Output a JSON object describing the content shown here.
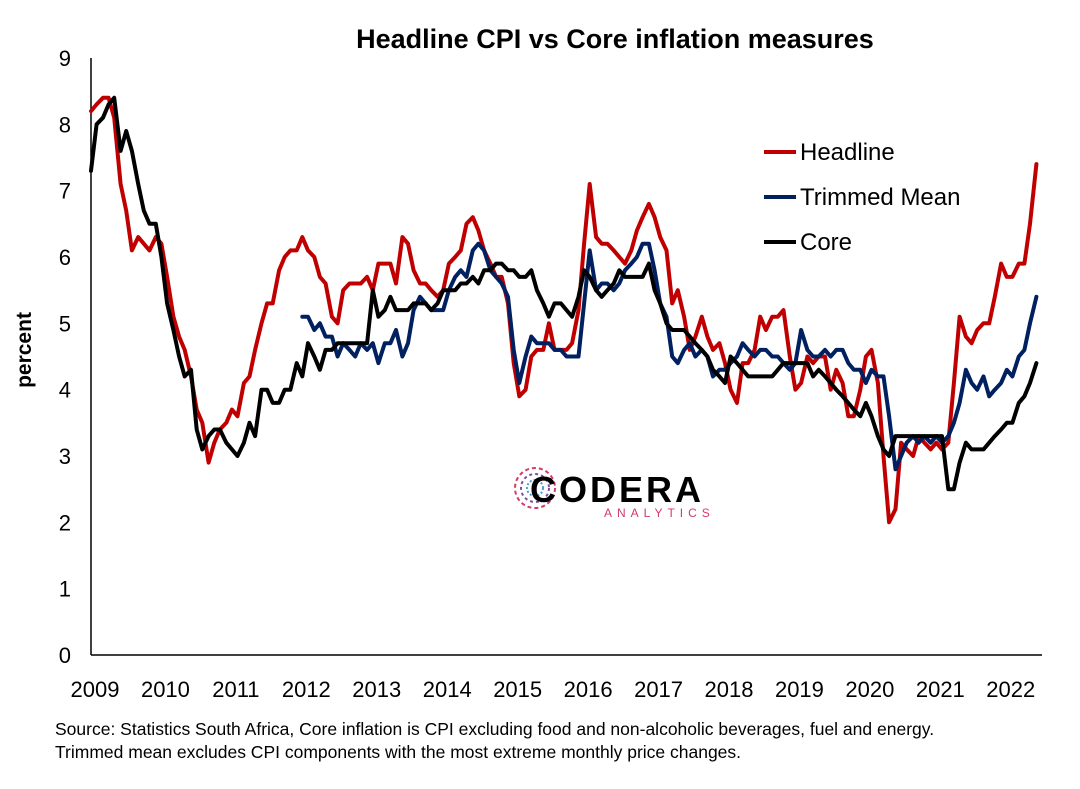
{
  "chart_data": {
    "type": "line",
    "title": "Headline CPI vs Core inflation measures",
    "ylabel": "percent",
    "xlabel": "",
    "ylim": [
      0,
      9
    ],
    "yticks": [
      "0",
      "1",
      "2",
      "3",
      "4",
      "5",
      "6",
      "7",
      "8",
      "9"
    ],
    "xlim": [
      2009,
      2022.5
    ],
    "xticks": [
      "2009",
      "2010",
      "2011",
      "2012",
      "2013",
      "2014",
      "2015",
      "2016",
      "2017",
      "2018",
      "2019",
      "2020",
      "2021",
      "2022"
    ],
    "legend_position": "top-right",
    "series": [
      {
        "name": "Headline",
        "color": "#c00000",
        "x": [
          2009.0,
          2009.08,
          2009.17,
          2009.25,
          2009.33,
          2009.42,
          2009.5,
          2009.58,
          2009.67,
          2009.75,
          2009.83,
          2009.92,
          2010.0,
          2010.08,
          2010.17,
          2010.25,
          2010.33,
          2010.42,
          2010.5,
          2010.58,
          2010.67,
          2010.75,
          2010.83,
          2010.92,
          2011.0,
          2011.08,
          2011.17,
          2011.25,
          2011.33,
          2011.42,
          2011.5,
          2011.58,
          2011.67,
          2011.75,
          2011.83,
          2011.92,
          2012.0,
          2012.08,
          2012.17,
          2012.25,
          2012.33,
          2012.42,
          2012.5,
          2012.58,
          2012.67,
          2012.75,
          2012.83,
          2012.92,
          2013.0,
          2013.08,
          2013.17,
          2013.25,
          2013.33,
          2013.42,
          2013.5,
          2013.58,
          2013.67,
          2013.75,
          2013.83,
          2013.92,
          2014.0,
          2014.08,
          2014.17,
          2014.25,
          2014.33,
          2014.42,
          2014.5,
          2014.58,
          2014.67,
          2014.75,
          2014.83,
          2014.92,
          2015.0,
          2015.08,
          2015.17,
          2015.25,
          2015.33,
          2015.42,
          2015.5,
          2015.58,
          2015.67,
          2015.75,
          2015.83,
          2015.92,
          2016.0,
          2016.08,
          2016.17,
          2016.25,
          2016.33,
          2016.42,
          2016.5,
          2016.58,
          2016.67,
          2016.75,
          2016.83,
          2016.92,
          2017.0,
          2017.08,
          2017.17,
          2017.25,
          2017.33,
          2017.42,
          2017.5,
          2017.58,
          2017.67,
          2017.75,
          2017.83,
          2017.92,
          2018.0,
          2018.08,
          2018.17,
          2018.25,
          2018.33,
          2018.42,
          2018.5,
          2018.58,
          2018.67,
          2018.75,
          2018.83,
          2018.92,
          2019.0,
          2019.08,
          2019.17,
          2019.25,
          2019.33,
          2019.42,
          2019.5,
          2019.58,
          2019.67,
          2019.75,
          2019.83,
          2019.92,
          2020.0,
          2020.08,
          2020.17,
          2020.25,
          2020.33,
          2020.42,
          2020.5,
          2020.58,
          2020.67,
          2020.75,
          2020.83,
          2020.92,
          2021.0,
          2021.08,
          2021.17,
          2021.25,
          2021.33,
          2021.42,
          2021.5,
          2021.58,
          2021.67,
          2021.75,
          2021.83,
          2021.92,
          2022.0,
          2022.08,
          2022.17,
          2022.25,
          2022.33,
          2022.42
        ],
        "values": [
          8.2,
          8.3,
          8.4,
          8.4,
          8.1,
          7.1,
          6.7,
          6.1,
          6.3,
          6.2,
          6.1,
          6.3,
          6.2,
          5.7,
          5.1,
          4.8,
          4.6,
          4.2,
          3.7,
          3.5,
          2.9,
          3.2,
          3.4,
          3.5,
          3.7,
          3.6,
          4.1,
          4.2,
          4.6,
          5.0,
          5.3,
          5.3,
          5.8,
          6.0,
          6.1,
          6.1,
          6.3,
          6.1,
          6.0,
          5.7,
          5.6,
          5.1,
          5.0,
          5.5,
          5.6,
          5.6,
          5.6,
          5.7,
          5.5,
          5.9,
          5.9,
          5.9,
          5.6,
          6.3,
          6.2,
          5.8,
          5.6,
          5.6,
          5.5,
          5.4,
          5.5,
          5.9,
          6.0,
          6.1,
          6.5,
          6.6,
          6.4,
          6.1,
          5.9,
          5.7,
          5.7,
          5.3,
          4.4,
          3.9,
          4.0,
          4.5,
          4.6,
          4.6,
          5.0,
          4.6,
          4.6,
          4.6,
          4.7,
          5.2,
          6.2,
          7.1,
          6.3,
          6.2,
          6.2,
          6.1,
          6.0,
          5.9,
          6.1,
          6.4,
          6.6,
          6.8,
          6.6,
          6.3,
          6.1,
          5.3,
          5.5,
          5.1,
          4.6,
          4.8,
          5.1,
          4.8,
          4.6,
          4.7,
          4.4,
          4.0,
          3.8,
          4.4,
          4.4,
          4.6,
          5.1,
          4.9,
          5.1,
          5.1,
          5.2,
          4.5,
          4.0,
          4.1,
          4.5,
          4.4,
          4.5,
          4.5,
          4.0,
          4.3,
          4.1,
          3.6,
          3.6,
          4.0,
          4.5,
          4.6,
          4.1,
          3.0,
          2.0,
          2.2,
          3.2,
          3.1,
          3.0,
          3.3,
          3.2,
          3.1,
          3.2,
          3.1,
          3.2,
          4.1,
          5.1,
          4.8,
          4.7,
          4.9,
          5.0,
          5.0,
          5.4,
          5.9,
          5.7,
          5.7,
          5.9,
          5.9,
          6.5,
          7.4
        ]
      },
      {
        "name": "Trimmed Mean",
        "color": "#002060",
        "x": [
          2012.0,
          2012.08,
          2012.17,
          2012.25,
          2012.33,
          2012.42,
          2012.5,
          2012.58,
          2012.67,
          2012.75,
          2012.83,
          2012.92,
          2013.0,
          2013.08,
          2013.17,
          2013.25,
          2013.33,
          2013.42,
          2013.5,
          2013.58,
          2013.67,
          2013.75,
          2013.83,
          2013.92,
          2014.0,
          2014.08,
          2014.17,
          2014.25,
          2014.33,
          2014.42,
          2014.5,
          2014.58,
          2014.67,
          2014.75,
          2014.83,
          2014.92,
          2015.0,
          2015.08,
          2015.17,
          2015.25,
          2015.33,
          2015.42,
          2015.5,
          2015.58,
          2015.67,
          2015.75,
          2015.83,
          2015.92,
          2016.0,
          2016.08,
          2016.17,
          2016.25,
          2016.33,
          2016.42,
          2016.5,
          2016.58,
          2016.67,
          2016.75,
          2016.83,
          2016.92,
          2017.0,
          2017.08,
          2017.17,
          2017.25,
          2017.33,
          2017.42,
          2017.5,
          2017.58,
          2017.67,
          2017.75,
          2017.83,
          2017.92,
          2018.0,
          2018.08,
          2018.17,
          2018.25,
          2018.33,
          2018.42,
          2018.5,
          2018.58,
          2018.67,
          2018.75,
          2018.83,
          2018.92,
          2019.0,
          2019.08,
          2019.17,
          2019.25,
          2019.33,
          2019.42,
          2019.5,
          2019.58,
          2019.67,
          2019.75,
          2019.83,
          2019.92,
          2020.0,
          2020.08,
          2020.17,
          2020.25,
          2020.33,
          2020.42,
          2020.5,
          2020.58,
          2020.67,
          2020.75,
          2020.83,
          2020.92,
          2021.0,
          2021.08,
          2021.17,
          2021.25,
          2021.33,
          2021.42,
          2021.5,
          2021.58,
          2021.67,
          2021.75,
          2021.83,
          2021.92,
          2022.0,
          2022.08,
          2022.17,
          2022.25,
          2022.33,
          2022.42
        ],
        "values": [
          5.1,
          5.1,
          4.9,
          5.0,
          4.8,
          4.8,
          4.5,
          4.7,
          4.6,
          4.5,
          4.7,
          4.6,
          4.7,
          4.4,
          4.7,
          4.7,
          4.9,
          4.5,
          4.7,
          5.2,
          5.4,
          5.3,
          5.2,
          5.2,
          5.2,
          5.5,
          5.7,
          5.8,
          5.7,
          6.1,
          6.2,
          6.1,
          5.8,
          5.7,
          5.6,
          5.4,
          4.6,
          4.1,
          4.5,
          4.8,
          4.7,
          4.7,
          4.7,
          4.6,
          4.6,
          4.5,
          4.5,
          4.5,
          5.3,
          6.1,
          5.5,
          5.6,
          5.6,
          5.5,
          5.6,
          5.8,
          5.9,
          6.0,
          6.2,
          6.2,
          5.8,
          5.3,
          5.1,
          4.5,
          4.4,
          4.6,
          4.7,
          4.5,
          4.6,
          4.5,
          4.2,
          4.3,
          4.3,
          4.4,
          4.5,
          4.7,
          4.6,
          4.5,
          4.6,
          4.6,
          4.5,
          4.5,
          4.4,
          4.3,
          4.4,
          4.9,
          4.6,
          4.5,
          4.5,
          4.6,
          4.5,
          4.6,
          4.6,
          4.4,
          4.3,
          4.3,
          4.1,
          4.3,
          4.2,
          4.2,
          3.6,
          2.8,
          3.0,
          3.2,
          3.3,
          3.2,
          3.3,
          3.2,
          3.3,
          3.2,
          3.3,
          3.5,
          3.8,
          4.3,
          4.1,
          4.0,
          4.2,
          3.9,
          4.0,
          4.1,
          4.3,
          4.2,
          4.5,
          4.6,
          5.0,
          5.4
        ]
      },
      {
        "name": "Core",
        "color": "#000000",
        "x": [
          2009.0,
          2009.08,
          2009.17,
          2009.25,
          2009.33,
          2009.42,
          2009.5,
          2009.58,
          2009.67,
          2009.75,
          2009.83,
          2009.92,
          2010.0,
          2010.08,
          2010.17,
          2010.25,
          2010.33,
          2010.42,
          2010.5,
          2010.58,
          2010.67,
          2010.75,
          2010.83,
          2010.92,
          2011.0,
          2011.08,
          2011.17,
          2011.25,
          2011.33,
          2011.42,
          2011.5,
          2011.58,
          2011.67,
          2011.75,
          2011.83,
          2011.92,
          2012.0,
          2012.08,
          2012.17,
          2012.25,
          2012.33,
          2012.42,
          2012.5,
          2012.58,
          2012.67,
          2012.75,
          2012.83,
          2012.92,
          2013.0,
          2013.08,
          2013.17,
          2013.25,
          2013.33,
          2013.42,
          2013.5,
          2013.58,
          2013.67,
          2013.75,
          2013.83,
          2013.92,
          2014.0,
          2014.08,
          2014.17,
          2014.25,
          2014.33,
          2014.42,
          2014.5,
          2014.58,
          2014.67,
          2014.75,
          2014.83,
          2014.92,
          2015.0,
          2015.08,
          2015.17,
          2015.25,
          2015.33,
          2015.42,
          2015.5,
          2015.58,
          2015.67,
          2015.75,
          2015.83,
          2015.92,
          2016.0,
          2016.08,
          2016.17,
          2016.25,
          2016.33,
          2016.42,
          2016.5,
          2016.58,
          2016.67,
          2016.75,
          2016.83,
          2016.92,
          2017.0,
          2017.08,
          2017.17,
          2017.25,
          2017.33,
          2017.42,
          2017.5,
          2017.58,
          2017.67,
          2017.75,
          2017.83,
          2017.92,
          2018.0,
          2018.08,
          2018.17,
          2018.25,
          2018.33,
          2018.42,
          2018.5,
          2018.58,
          2018.67,
          2018.75,
          2018.83,
          2018.92,
          2019.0,
          2019.08,
          2019.17,
          2019.25,
          2019.33,
          2019.42,
          2019.5,
          2019.58,
          2019.67,
          2019.75,
          2019.83,
          2019.92,
          2020.0,
          2020.08,
          2020.17,
          2020.25,
          2020.33,
          2020.42,
          2020.5,
          2020.58,
          2020.67,
          2020.75,
          2020.83,
          2020.92,
          2021.0,
          2021.08,
          2021.17,
          2021.25,
          2021.33,
          2021.42,
          2021.5,
          2021.58,
          2021.67,
          2021.75,
          2021.83,
          2021.92,
          2022.0,
          2022.08,
          2022.17,
          2022.25,
          2022.33,
          2022.42
        ],
        "values": [
          7.3,
          8.0,
          8.1,
          8.3,
          8.4,
          7.6,
          7.9,
          7.6,
          7.1,
          6.7,
          6.5,
          6.5,
          6.0,
          5.3,
          4.9,
          4.5,
          4.2,
          4.3,
          3.4,
          3.1,
          3.3,
          3.4,
          3.4,
          3.2,
          3.1,
          3.0,
          3.2,
          3.5,
          3.3,
          4.0,
          4.0,
          3.8,
          3.8,
          4.0,
          4.0,
          4.4,
          4.2,
          4.7,
          4.5,
          4.3,
          4.6,
          4.6,
          4.7,
          4.7,
          4.7,
          4.7,
          4.7,
          4.7,
          5.5,
          5.1,
          5.2,
          5.4,
          5.2,
          5.2,
          5.2,
          5.3,
          5.3,
          5.3,
          5.2,
          5.3,
          5.5,
          5.5,
          5.5,
          5.6,
          5.6,
          5.7,
          5.6,
          5.8,
          5.8,
          5.9,
          5.9,
          5.8,
          5.8,
          5.7,
          5.7,
          5.8,
          5.5,
          5.3,
          5.1,
          5.3,
          5.3,
          5.2,
          5.1,
          5.4,
          5.8,
          5.7,
          5.5,
          5.4,
          5.5,
          5.6,
          5.8,
          5.7,
          5.7,
          5.7,
          5.7,
          5.9,
          5.5,
          5.3,
          5.0,
          4.9,
          4.9,
          4.9,
          4.8,
          4.7,
          4.6,
          4.5,
          4.3,
          4.2,
          4.1,
          4.5,
          4.4,
          4.3,
          4.2,
          4.2,
          4.2,
          4.2,
          4.2,
          4.3,
          4.4,
          4.4,
          4.4,
          4.4,
          4.4,
          4.2,
          4.3,
          4.2,
          4.1,
          4.0,
          3.9,
          3.8,
          3.7,
          3.6,
          3.8,
          3.6,
          3.3,
          3.1,
          3.0,
          3.3,
          3.3,
          3.3,
          3.3,
          3.3,
          3.3,
          3.3,
          3.3,
          3.3,
          2.5,
          2.5,
          2.9,
          3.2,
          3.1,
          3.1,
          3.1,
          3.2,
          3.3,
          3.4,
          3.5,
          3.5,
          3.8,
          3.9,
          4.1,
          4.4
        ]
      }
    ]
  },
  "logo": {
    "name": "CODERA",
    "tagline": "ANALYTICS"
  },
  "source": {
    "line1": "Source: Statistics South Africa, Core inflation is CPI excluding food and non-alcoholic beverages, fuel and energy.",
    "line2": "Trimmed mean excludes CPI components with the most extreme monthly price changes."
  }
}
